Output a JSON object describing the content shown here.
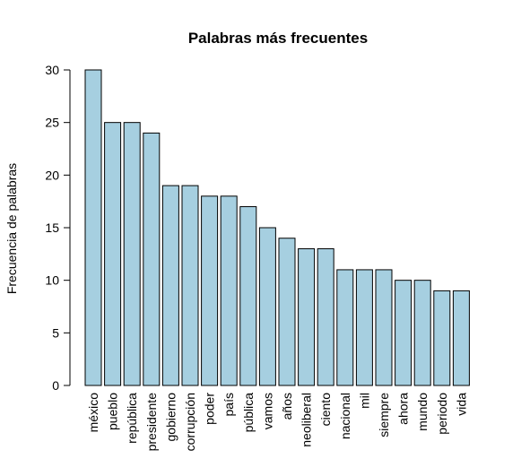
{
  "chart_data": {
    "type": "bar",
    "title": "Palabras más frecuentes",
    "xlabel": "",
    "ylabel": "Frecuencia de palabras",
    "categories": [
      "méxico",
      "pueblo",
      "república",
      "presidente",
      "gobierno",
      "corrupción",
      "poder",
      "país",
      "pública",
      "vamos",
      "años",
      "neoliberal",
      "ciento",
      "nacional",
      "mil",
      "siempre",
      "ahora",
      "mundo",
      "periodo",
      "vida"
    ],
    "values": [
      30,
      25,
      25,
      24,
      19,
      19,
      18,
      18,
      17,
      15,
      14,
      13,
      13,
      11,
      11,
      11,
      10,
      10,
      9,
      9
    ],
    "ylim": [
      0,
      30
    ],
    "yticks": [
      0,
      5,
      10,
      15,
      20,
      25,
      30
    ],
    "grid": false,
    "bar_color": "#a6cfe0"
  }
}
